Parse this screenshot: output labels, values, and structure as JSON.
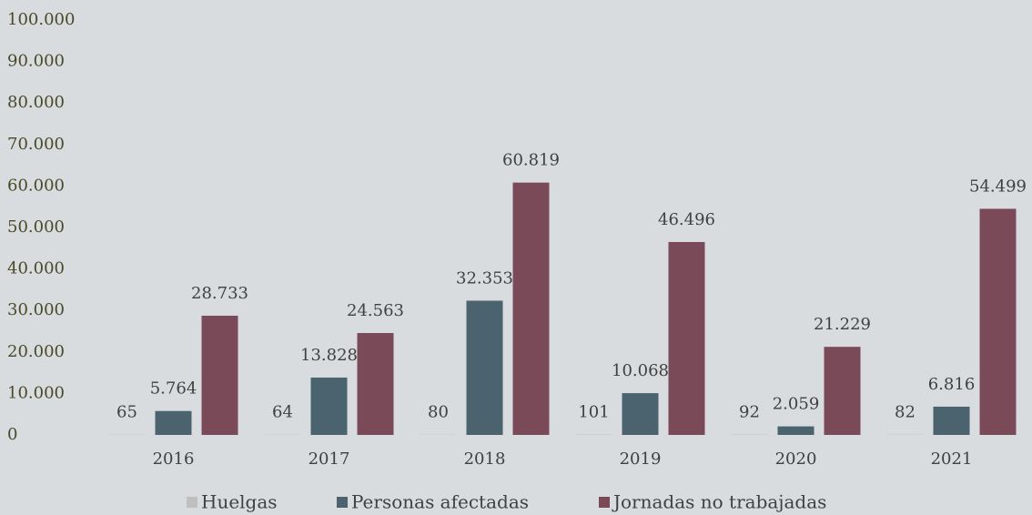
{
  "chart_data": {
    "type": "bar",
    "categories": [
      "2016",
      "2017",
      "2018",
      "2019",
      "2020",
      "2021"
    ],
    "series": [
      {
        "name": "Huelgas",
        "color": "#bfbfbf",
        "values": [
          65,
          64,
          80,
          101,
          92,
          82
        ],
        "value_labels": [
          "65",
          "64",
          "80",
          "101",
          "92",
          "82"
        ]
      },
      {
        "name": "Personas afectadas",
        "color": "#4a636e",
        "values": [
          5764,
          13828,
          32353,
          10068,
          2059,
          6816
        ],
        "value_labels": [
          "5.764",
          "13.828",
          "32.353",
          "10.068",
          "2.059",
          "6.816"
        ]
      },
      {
        "name": "Jornadas no trabajadas",
        "color": "#7b4a58",
        "values": [
          28733,
          24563,
          60819,
          46496,
          21229,
          54499
        ],
        "value_labels": [
          "28.733",
          "24.563",
          "60.819",
          "46.496",
          "21.229",
          "54.499"
        ]
      }
    ],
    "ylim": [
      0,
      100000
    ],
    "yticks": [
      0,
      {
        "value": 10000,
        "label": "10.000"
      },
      {
        "value": 20000,
        "label": "20.000"
      },
      {
        "value": 30000,
        "label": "30.000"
      },
      {
        "value": 40000,
        "label": "40.000"
      },
      {
        "value": 50000,
        "label": "50.000"
      },
      {
        "value": 60000,
        "label": "60.000"
      },
      {
        "value": 70000,
        "label": "70.000"
      },
      {
        "value": 80000,
        "label": "80.000"
      },
      {
        "value": 90000,
        "label": "90.000"
      },
      {
        "value": 100000,
        "label": "100.000"
      }
    ],
    "grid": false,
    "legend": "bottom"
  }
}
